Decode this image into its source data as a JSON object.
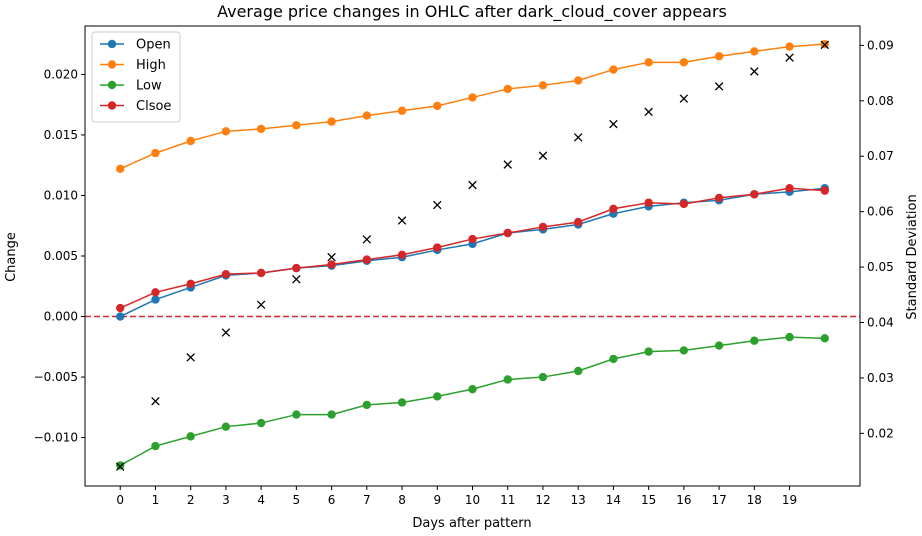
{
  "chart_data": {
    "type": "line",
    "title": "Average price changes in OHLC after dark_cloud_cover appears",
    "xlabel": "Days after pattern",
    "ylabel": "Change",
    "y2label": "Standard Deviation",
    "xticks": [
      "0",
      "1",
      "2",
      "3",
      "4",
      "5",
      "6",
      "7",
      "8",
      "9",
      "10",
      "11",
      "12",
      "13",
      "14",
      "15",
      "16",
      "17",
      "18",
      "19"
    ],
    "x": [
      0,
      1,
      2,
      3,
      4,
      5,
      6,
      7,
      8,
      9,
      10,
      11,
      12,
      13,
      14,
      15,
      16,
      17,
      18,
      19,
      20
    ],
    "ylim": [
      -0.014,
      0.024
    ],
    "yticks": [
      -0.01,
      -0.005,
      0.0,
      0.005,
      0.01,
      0.015,
      0.02
    ],
    "ytick_labels": [
      "−0.010",
      "−0.005",
      "0.000",
      "0.005",
      "0.010",
      "0.015",
      "0.020"
    ],
    "y2lim": [
      0.0105,
      0.0935
    ],
    "y2ticks": [
      0.02,
      0.03,
      0.04,
      0.05,
      0.06,
      0.07,
      0.08,
      0.09
    ],
    "y2tick_labels": [
      "0.02",
      "0.03",
      "0.04",
      "0.05",
      "0.06",
      "0.07",
      "0.08",
      "0.09"
    ],
    "zero_line": {
      "value": 0.0,
      "color": "#d62728",
      "style": "dashed"
    },
    "legend": "top-left",
    "grid": false,
    "series": [
      {
        "name": "Open",
        "color": "#1f77b4",
        "axis": "left",
        "values": [
          0.0,
          0.0014,
          0.0024,
          0.0034,
          0.0036,
          0.004,
          0.0042,
          0.0046,
          0.0049,
          0.0055,
          0.006,
          0.0069,
          0.0072,
          0.0076,
          0.0085,
          0.0091,
          0.0094,
          0.0096,
          0.0101,
          0.0103,
          0.0106
        ]
      },
      {
        "name": "High",
        "color": "#ff7f0e",
        "axis": "left",
        "values": [
          0.0122,
          0.0135,
          0.0145,
          0.0153,
          0.0155,
          0.0158,
          0.0161,
          0.0166,
          0.017,
          0.0174,
          0.0181,
          0.0188,
          0.0191,
          0.0195,
          0.0204,
          0.021,
          0.021,
          0.0215,
          0.0219,
          0.0223,
          0.0225
        ]
      },
      {
        "name": "Low",
        "color": "#2ca02c",
        "axis": "left",
        "values": [
          -0.0123,
          -0.0107,
          -0.0099,
          -0.0091,
          -0.0088,
          -0.0081,
          -0.0081,
          -0.0073,
          -0.0071,
          -0.0066,
          -0.006,
          -0.0052,
          -0.005,
          -0.0045,
          -0.0035,
          -0.0029,
          -0.0028,
          -0.0024,
          -0.002,
          -0.0017,
          -0.0018
        ]
      },
      {
        "name": "Clsoe",
        "color": "#d62728",
        "axis": "left",
        "values": [
          0.0007,
          0.002,
          0.0027,
          0.0035,
          0.0036,
          0.004,
          0.0043,
          0.0047,
          0.0051,
          0.0057,
          0.0064,
          0.0069,
          0.0074,
          0.0078,
          0.0089,
          0.0094,
          0.0093,
          0.0098,
          0.0101,
          0.0106,
          0.0104
        ]
      }
    ],
    "std_series": {
      "marker": "x",
      "color": "#000000",
      "axis": "right",
      "values": [
        0.014,
        0.0258,
        0.0337,
        0.0382,
        0.0432,
        0.0478,
        0.0518,
        0.055,
        0.0584,
        0.0612,
        0.0648,
        0.0685,
        0.0701,
        0.0734,
        0.0758,
        0.078,
        0.0804,
        0.0826,
        0.0853,
        0.0878,
        0.0901
      ]
    }
  }
}
